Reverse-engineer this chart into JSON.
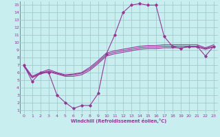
{
  "xlabel": "Windchill (Refroidissement éolien,°C)",
  "bg_color": "#c8eef0",
  "grid_color": "#a0cccc",
  "line_color": "#993399",
  "xlim": [
    -0.5,
    23.5
  ],
  "ylim": [
    0.5,
    15.5
  ],
  "xticks": [
    0,
    1,
    2,
    3,
    4,
    5,
    6,
    7,
    8,
    9,
    10,
    11,
    12,
    13,
    14,
    15,
    16,
    17,
    18,
    19,
    20,
    21,
    22,
    23
  ],
  "yticks": [
    1,
    2,
    3,
    4,
    5,
    6,
    7,
    8,
    9,
    10,
    11,
    12,
    13,
    14,
    15
  ],
  "series1": [
    7.0,
    4.8,
    6.0,
    6.0,
    3.0,
    2.0,
    1.2,
    1.6,
    1.6,
    3.2,
    8.5,
    11.0,
    14.0,
    15.0,
    15.2,
    15.0,
    15.0,
    10.8,
    9.5,
    9.2,
    9.5,
    9.5,
    8.2,
    9.5
  ],
  "series2": [
    6.8,
    5.3,
    5.8,
    6.1,
    5.8,
    5.5,
    5.5,
    5.7,
    6.3,
    7.2,
    8.2,
    8.5,
    8.7,
    8.9,
    9.1,
    9.2,
    9.2,
    9.3,
    9.3,
    9.3,
    9.4,
    9.4,
    9.1,
    9.4
  ],
  "series3": [
    6.9,
    5.4,
    5.9,
    6.2,
    5.9,
    5.6,
    5.7,
    5.9,
    6.5,
    7.4,
    8.4,
    8.7,
    8.9,
    9.1,
    9.3,
    9.4,
    9.4,
    9.5,
    9.5,
    9.5,
    9.5,
    9.5,
    9.2,
    9.5
  ],
  "series4": [
    7.0,
    5.5,
    6.0,
    6.4,
    6.0,
    5.7,
    5.8,
    6.0,
    6.7,
    7.6,
    8.6,
    8.9,
    9.1,
    9.3,
    9.5,
    9.6,
    9.6,
    9.7,
    9.7,
    9.7,
    9.7,
    9.7,
    9.3,
    9.7
  ]
}
